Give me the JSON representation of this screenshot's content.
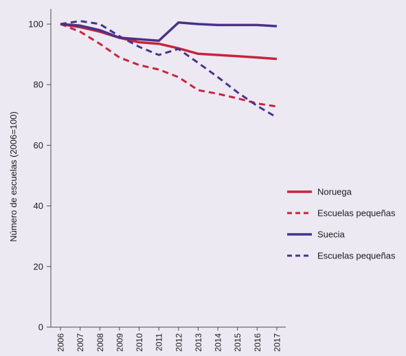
{
  "chart_data": {
    "type": "line",
    "ylabel": "Número de escuelas (2006=100)",
    "ylim": [
      0,
      105
    ],
    "yticks": [
      0,
      20,
      40,
      60,
      80,
      100
    ],
    "categories": [
      "2006",
      "2007",
      "2008",
      "2009",
      "2010",
      "2011",
      "2012",
      "2013",
      "2014",
      "2015",
      "2016",
      "2017"
    ],
    "grid": false,
    "legend_position": "right",
    "series": [
      {
        "name": "Noruega",
        "color": "#c8243b",
        "dash": "solid",
        "values": [
          100,
          99,
          97.5,
          95.5,
          94,
          93.5,
          92,
          90.2,
          89.8,
          89.4,
          89,
          88.5
        ]
      },
      {
        "name": "Escuelas pequeñas",
        "color": "#c8243b",
        "dash": "dashed",
        "values": [
          100,
          97.5,
          93.5,
          89,
          86.5,
          85,
          82.5,
          78.2,
          77,
          75.5,
          73.8,
          72.8
        ]
      },
      {
        "name": "Suecia",
        "color": "#4a318a",
        "dash": "solid",
        "values": [
          100,
          99.5,
          98,
          95.5,
          95,
          94.5,
          100.5,
          100,
          99.7,
          99.7,
          99.7,
          99.3
        ]
      },
      {
        "name": "Escuelas pequeñas",
        "color": "#4a318a",
        "dash": "dashed",
        "values": [
          100,
          101,
          100,
          96,
          92.5,
          89.8,
          91.8,
          87.2,
          82.5,
          77.5,
          73,
          69.2
        ]
      }
    ]
  }
}
